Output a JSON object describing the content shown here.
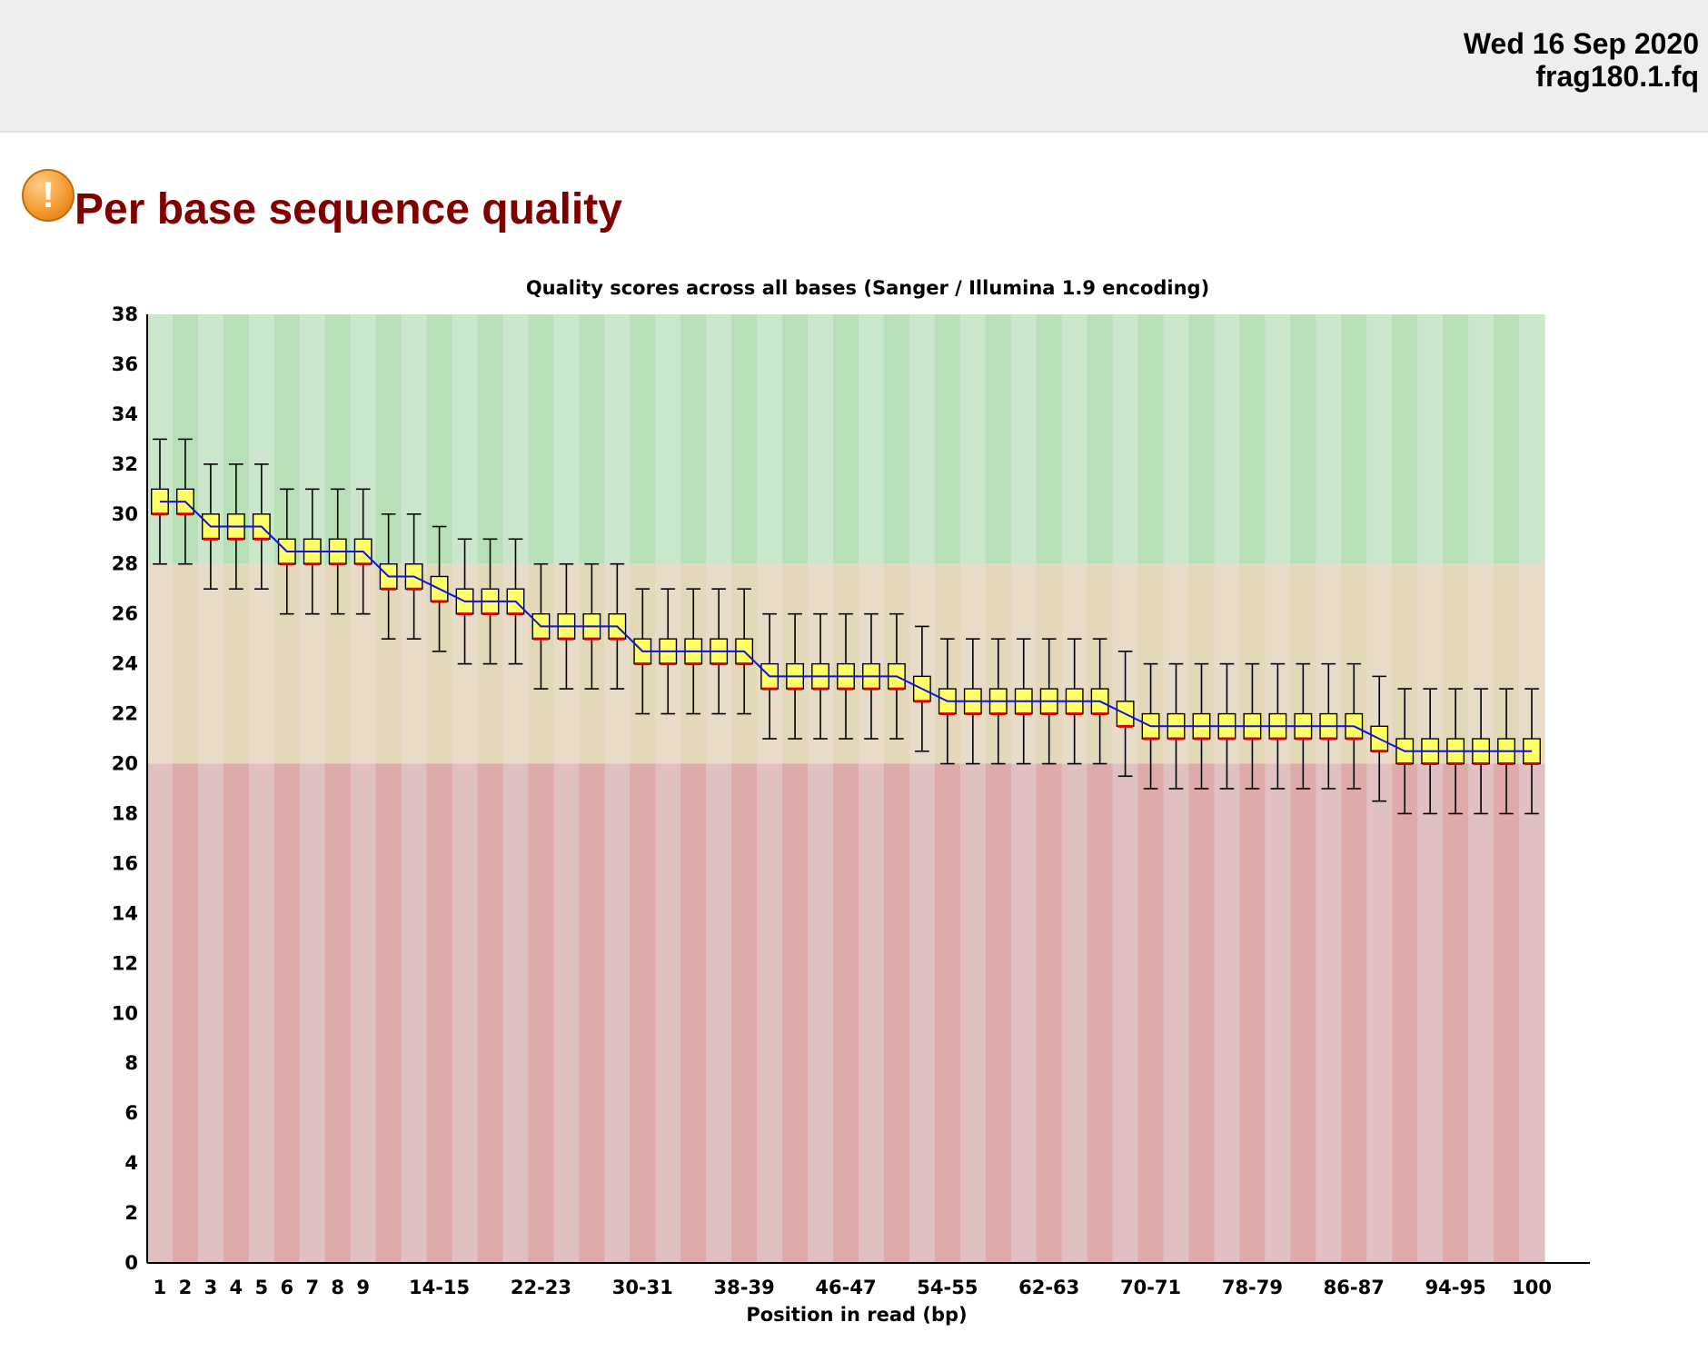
{
  "header": {
    "date": "Wed 16 Sep 2020",
    "filename": "frag180.1.fq"
  },
  "section": {
    "title": "Per base sequence quality",
    "status_icon": "warning-icon",
    "status_glyph": "!"
  },
  "colors": {
    "good": "#b8e0b8",
    "good_alt": "#cce6cc",
    "warn": "#e3d8b8",
    "warn_alt": "#e8dcc8",
    "bad": "#dfaaaa",
    "bad_alt": "#e0c0c0",
    "box": "#ffff66",
    "mean_line": "#1010e0",
    "median": "#d40000",
    "title": "#800000"
  },
  "chart_data": {
    "type": "box",
    "title": "Quality scores across all bases (Sanger / Illumina 1.9 encoding)",
    "xlabel": "Position in read (bp)",
    "ylabel": "",
    "ylim": [
      0,
      38
    ],
    "yticks": [
      0,
      2,
      4,
      6,
      8,
      10,
      12,
      14,
      16,
      18,
      20,
      22,
      24,
      26,
      28,
      30,
      32,
      34,
      36,
      38
    ],
    "zones": {
      "good_min": 28,
      "warn_min": 20
    },
    "categories": [
      "1",
      "2",
      "3",
      "4",
      "5",
      "6",
      "7",
      "8",
      "9",
      "10-11",
      "12-13",
      "14-15",
      "16-17",
      "18-19",
      "20-21",
      "22-23",
      "24-25",
      "26-27",
      "28-29",
      "30-31",
      "32-33",
      "34-35",
      "36-37",
      "38-39",
      "40-41",
      "42-43",
      "44-45",
      "46-47",
      "48-49",
      "50-51",
      "52-53",
      "54-55",
      "56-57",
      "58-59",
      "60-61",
      "62-63",
      "64-65",
      "66-67",
      "68-69",
      "70-71",
      "72-73",
      "74-75",
      "76-77",
      "78-79",
      "80-81",
      "82-83",
      "84-85",
      "86-87",
      "88-89",
      "90-91",
      "92-93",
      "94-95",
      "96-97",
      "98-99",
      "100"
    ],
    "tick_labels_shown": [
      "1",
      "2",
      "3",
      "4",
      "5",
      "6",
      "7",
      "8",
      "9",
      "14-15",
      "22-23",
      "30-31",
      "38-39",
      "46-47",
      "54-55",
      "62-63",
      "70-71",
      "78-79",
      "86-87",
      "94-95",
      "100"
    ],
    "series": [
      {
        "name": "lower_whisker",
        "values": [
          28,
          28,
          27,
          27,
          27,
          26,
          26,
          26,
          26,
          25,
          25,
          24.5,
          24,
          24,
          24,
          23,
          23,
          23,
          23,
          22,
          22,
          22,
          22,
          22,
          21,
          21,
          21,
          21,
          21,
          21,
          20.5,
          20,
          20,
          20,
          20,
          20,
          20,
          20,
          19.5,
          19,
          19,
          19,
          19,
          19,
          19,
          19,
          19,
          19,
          18.5,
          18,
          18,
          18,
          18,
          18,
          18
        ]
      },
      {
        "name": "lower_quartile",
        "values": [
          30,
          30,
          29,
          29,
          29,
          28,
          28,
          28,
          28,
          27,
          27,
          26.5,
          26,
          26,
          26,
          25,
          25,
          25,
          25,
          24,
          24,
          24,
          24,
          24,
          23,
          23,
          23,
          23,
          23,
          23,
          22.5,
          22,
          22,
          22,
          22,
          22,
          22,
          22,
          21.5,
          21,
          21,
          21,
          21,
          21,
          21,
          21,
          21,
          21,
          20.5,
          20,
          20,
          20,
          20,
          20,
          20
        ]
      },
      {
        "name": "median",
        "values": [
          30,
          30,
          29,
          29,
          29,
          28,
          28,
          28,
          28,
          27,
          27,
          26.5,
          26,
          26,
          26,
          25,
          25,
          25,
          25,
          24,
          24,
          24,
          24,
          24,
          23,
          23,
          23,
          23,
          23,
          23,
          22.5,
          22,
          22,
          22,
          22,
          22,
          22,
          22,
          21.5,
          21,
          21,
          21,
          21,
          21,
          21,
          21,
          21,
          21,
          20.5,
          20,
          20,
          20,
          20,
          20,
          20
        ]
      },
      {
        "name": "upper_quartile",
        "values": [
          31,
          31,
          30,
          30,
          30,
          29,
          29,
          29,
          29,
          28,
          28,
          27.5,
          27,
          27,
          27,
          26,
          26,
          26,
          26,
          25,
          25,
          25,
          25,
          25,
          24,
          24,
          24,
          24,
          24,
          24,
          23.5,
          23,
          23,
          23,
          23,
          23,
          23,
          23,
          22.5,
          22,
          22,
          22,
          22,
          22,
          22,
          22,
          22,
          22,
          21.5,
          21,
          21,
          21,
          21,
          21,
          21
        ]
      },
      {
        "name": "upper_whisker",
        "values": [
          33,
          33,
          32,
          32,
          32,
          31,
          31,
          31,
          31,
          30,
          30,
          29.5,
          29,
          29,
          29,
          28,
          28,
          28,
          28,
          27,
          27,
          27,
          27,
          27,
          26,
          26,
          26,
          26,
          26,
          26,
          25.5,
          25,
          25,
          25,
          25,
          25,
          25,
          25,
          24.5,
          24,
          24,
          24,
          24,
          24,
          24,
          24,
          24,
          24,
          23.5,
          23,
          23,
          23,
          23,
          23,
          23
        ]
      },
      {
        "name": "mean",
        "values": [
          30.5,
          30.5,
          29.5,
          29.5,
          29.5,
          28.5,
          28.5,
          28.5,
          28.5,
          27.5,
          27.5,
          27,
          26.5,
          26.5,
          26.5,
          25.5,
          25.5,
          25.5,
          25.5,
          24.5,
          24.5,
          24.5,
          24.5,
          24.5,
          23.5,
          23.5,
          23.5,
          23.5,
          23.5,
          23.5,
          23,
          22.5,
          22.5,
          22.5,
          22.5,
          22.5,
          22.5,
          22.5,
          22,
          21.5,
          21.5,
          21.5,
          21.5,
          21.5,
          21.5,
          21.5,
          21.5,
          21.5,
          21,
          20.5,
          20.5,
          20.5,
          20.5,
          20.5,
          20.5
        ]
      }
    ]
  }
}
